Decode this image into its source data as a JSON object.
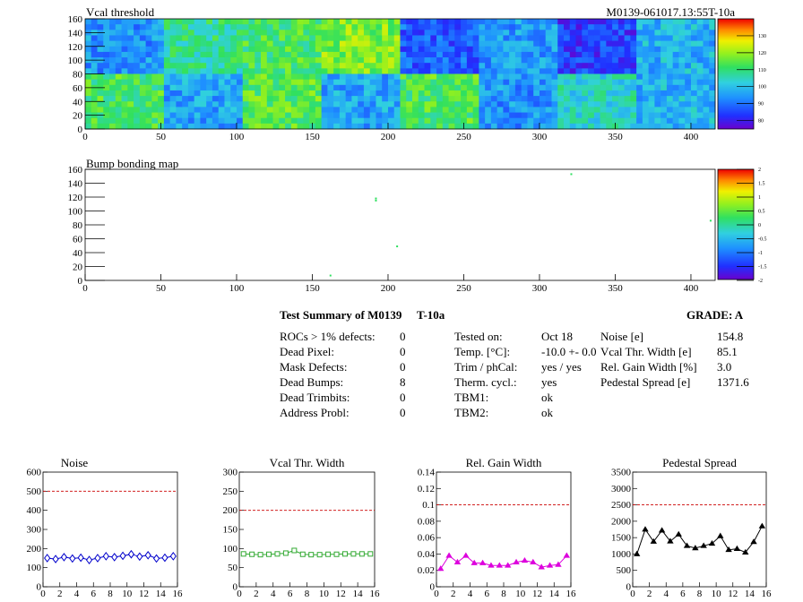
{
  "chart_data": [
    {
      "type": "heatmap",
      "title": "Vcal threshold",
      "module_label": "M0139-061017.13:55T-10a",
      "xlim": [
        0,
        416
      ],
      "ylim": [
        0,
        160
      ],
      "x_ticks": [
        "0",
        "50",
        "100",
        "150",
        "200",
        "250",
        "300",
        "350",
        "400"
      ],
      "y_ticks": [
        "0",
        "20",
        "40",
        "60",
        "80",
        "100",
        "120",
        "140",
        "160"
      ],
      "colorbar": {
        "min": 75,
        "max": 140,
        "ticks": [
          "130",
          "120",
          "110",
          "100",
          "90",
          "80"
        ]
      },
      "roc_mean_values": {
        "top": [
          94,
          108,
          112,
          118,
          88,
          95,
          84,
          98
        ],
        "bottom": [
          112,
          96,
          114,
          96,
          113,
          94,
          104,
          98
        ]
      }
    },
    {
      "type": "heatmap",
      "title": "Bump bonding map",
      "xlim": [
        0,
        416
      ],
      "ylim": [
        0,
        160
      ],
      "x_ticks": [
        "0",
        "50",
        "100",
        "150",
        "200",
        "250",
        "300",
        "350",
        "400"
      ],
      "y_ticks": [
        "0",
        "20",
        "40",
        "60",
        "80",
        "100",
        "120",
        "140",
        "160"
      ],
      "colorbar": {
        "min": -2,
        "max": 2,
        "ticks": [
          "2",
          "1.5",
          "1",
          "0.5",
          "0",
          "-0.5",
          "-1",
          "-1.5",
          "-2"
        ]
      },
      "points": [
        {
          "x": 162,
          "y": 7
        },
        {
          "x": 192,
          "y": 118
        },
        {
          "x": 192,
          "y": 115
        },
        {
          "x": 206,
          "y": 49
        },
        {
          "x": 321,
          "y": 153
        },
        {
          "x": 413,
          "y": 86
        }
      ]
    },
    {
      "type": "line",
      "title": "Noise",
      "x": [
        0,
        1,
        2,
        3,
        4,
        5,
        6,
        7,
        8,
        9,
        10,
        11,
        12,
        13,
        14,
        15
      ],
      "values": [
        150,
        145,
        155,
        148,
        152,
        140,
        150,
        160,
        155,
        162,
        170,
        158,
        165,
        148,
        152,
        160
      ],
      "ylim": [
        0,
        600
      ],
      "y_ticks": [
        "0",
        "100",
        "200",
        "300",
        "400",
        "500",
        "600"
      ],
      "x_ticks": [
        "0",
        "2",
        "4",
        "6",
        "8",
        "10",
        "12",
        "14",
        "16"
      ],
      "threshold": 500,
      "color": "#0000cc",
      "marker": "diamond"
    },
    {
      "type": "line",
      "title": "Vcal Thr. Width",
      "x": [
        0,
        1,
        2,
        3,
        4,
        5,
        6,
        7,
        8,
        9,
        10,
        11,
        12,
        13,
        14,
        15
      ],
      "values": [
        86,
        85,
        84,
        85,
        86,
        88,
        95,
        85,
        84,
        84,
        85,
        85,
        86,
        86,
        86,
        86
      ],
      "ylim": [
        0,
        300
      ],
      "y_ticks": [
        "0",
        "50",
        "100",
        "150",
        "200",
        "250",
        "300"
      ],
      "x_ticks": [
        "0",
        "2",
        "4",
        "6",
        "8",
        "10",
        "12",
        "14",
        "16"
      ],
      "threshold": 200,
      "color": "#33aa33",
      "marker": "square"
    },
    {
      "type": "line",
      "title": "Rel. Gain Width",
      "x": [
        0,
        1,
        2,
        3,
        4,
        5,
        6,
        7,
        8,
        9,
        10,
        11,
        12,
        13,
        14,
        15
      ],
      "values": [
        0.022,
        0.038,
        0.03,
        0.038,
        0.029,
        0.029,
        0.026,
        0.026,
        0.026,
        0.03,
        0.032,
        0.03,
        0.024,
        0.026,
        0.027,
        0.038
      ],
      "ylim": [
        0,
        0.14
      ],
      "y_ticks": [
        "0",
        "0.02",
        "0.04",
        "0.06",
        "0.08",
        "0.1",
        "0.12",
        "0.14"
      ],
      "x_ticks": [
        "0",
        "2",
        "4",
        "6",
        "8",
        "10",
        "12",
        "14",
        "16"
      ],
      "threshold": 0.1,
      "color": "#dd00dd",
      "marker": "triangle"
    },
    {
      "type": "line",
      "title": "Pedestal Spread",
      "x": [
        0,
        1,
        2,
        3,
        4,
        5,
        6,
        7,
        8,
        9,
        10,
        11,
        12,
        13,
        14,
        15
      ],
      "values": [
        1000,
        1750,
        1380,
        1720,
        1390,
        1600,
        1250,
        1180,
        1250,
        1320,
        1550,
        1130,
        1160,
        1050,
        1370,
        1850
      ],
      "ylim": [
        0,
        3500
      ],
      "y_ticks": [
        "0",
        "500",
        "1000",
        "1500",
        "2000",
        "2500",
        "3000",
        "3500"
      ],
      "x_ticks": [
        "0",
        "2",
        "4",
        "6",
        "8",
        "10",
        "12",
        "14",
        "16"
      ],
      "threshold": 2500,
      "color": "#000000",
      "marker": "triangle"
    }
  ],
  "summary": {
    "title": "Test Summary of M0139",
    "temp_tag": "T-10a",
    "grade": "GRADE:  A",
    "rows_left": [
      {
        "label": "ROCs > 1% defects:",
        "value": "0"
      },
      {
        "label": "Dead Pixel:",
        "value": "0"
      },
      {
        "label": "Mask Defects:",
        "value": "0"
      },
      {
        "label": "Dead Bumps:",
        "value": "8"
      },
      {
        "label": "Dead Trimbits:",
        "value": "0"
      },
      {
        "label": "Address Probl:",
        "value": "0"
      }
    ],
    "rows_mid": [
      {
        "label": "Tested on:",
        "value": "Oct 18"
      },
      {
        "label": "Temp. [°C]:",
        "value": "-10.0 +- 0.0"
      },
      {
        "label": "Trim / phCal:",
        "value": "yes / yes"
      },
      {
        "label": "Therm. cycl.:",
        "value": "yes"
      },
      {
        "label": "TBM1:",
        "value": "ok"
      },
      {
        "label": "TBM2:",
        "value": "ok"
      }
    ],
    "rows_right": [
      {
        "label": "Noise [e]",
        "value": "154.8"
      },
      {
        "label": "Vcal Thr. Width [e]",
        "value": "85.1"
      },
      {
        "label": "Rel. Gain Width [%]",
        "value": "3.0"
      },
      {
        "label": "Pedestal Spread [e]",
        "value": "1371.6"
      }
    ]
  }
}
